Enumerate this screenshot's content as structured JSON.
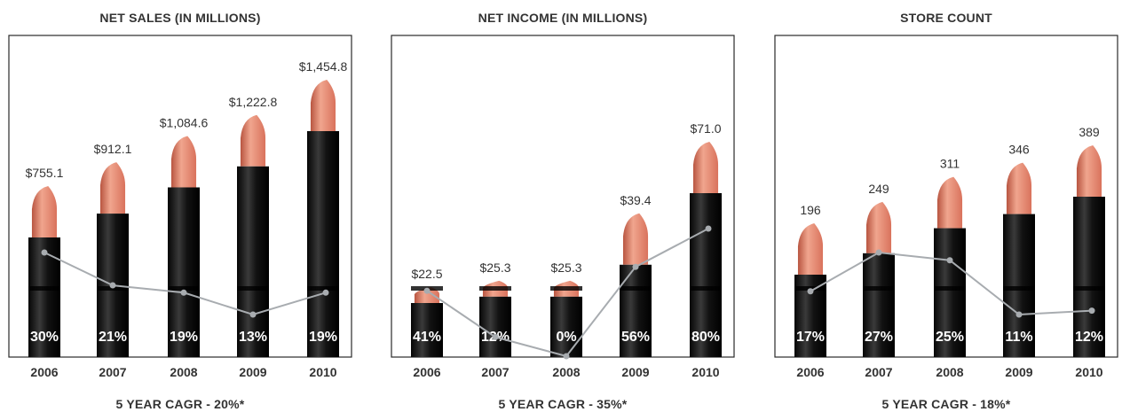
{
  "chart_data": [
    {
      "type": "bar",
      "title": "NET SALES (IN MILLIONS)",
      "footer": "5 YEAR CAGR - 20%*",
      "categories": [
        "2006",
        "2007",
        "2008",
        "2009",
        "2010"
      ],
      "values": [
        755.1,
        912.1,
        1084.6,
        1222.8,
        1454.8
      ],
      "value_labels": [
        "$755.1",
        "$912.1",
        "$1,084.6",
        "$1,222.8",
        "$1,454.8"
      ],
      "growth": [
        30,
        21,
        19,
        13,
        19
      ],
      "growth_labels": [
        "30%",
        "21%",
        "19%",
        "13%",
        "19%"
      ]
    },
    {
      "type": "bar",
      "title": "NET INCOME (IN MILLIONS)",
      "footer": "5 YEAR CAGR - 35%*",
      "categories": [
        "2006",
        "2007",
        "2008",
        "2009",
        "2010"
      ],
      "values": [
        22.5,
        25.3,
        25.3,
        39.4,
        71.0
      ],
      "value_labels": [
        "$22.5",
        "$25.3",
        "$25.3",
        "$39.4",
        "$71.0"
      ],
      "growth": [
        41,
        12,
        0,
        56,
        80
      ],
      "growth_labels": [
        "41%",
        "12%",
        "0%",
        "56%",
        "80%"
      ]
    },
    {
      "type": "bar",
      "title": "STORE COUNT",
      "footer": "5 YEAR CAGR - 18%*",
      "categories": [
        "2006",
        "2007",
        "2008",
        "2009",
        "2010"
      ],
      "values": [
        196,
        249,
        311,
        346,
        389
      ],
      "value_labels": [
        "196",
        "249",
        "311",
        "346",
        "389"
      ],
      "growth": [
        17,
        27,
        25,
        11,
        12
      ],
      "growth_labels": [
        "17%",
        "27%",
        "25%",
        "11%",
        "12%"
      ]
    }
  ],
  "colors": {
    "tube": "#121212",
    "tube_band": "#000000",
    "lipstick": "#d9725c",
    "lipstick_highlight": "#f0a58e",
    "trend_line": "#a8acb0",
    "frame": "#2a2a2a"
  }
}
